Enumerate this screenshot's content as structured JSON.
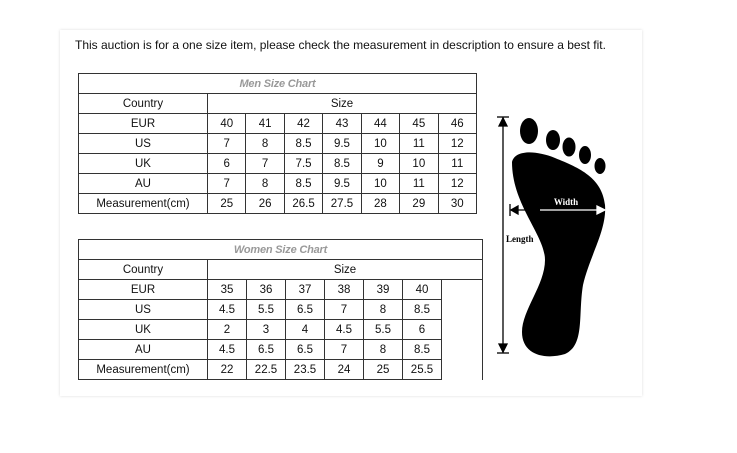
{
  "notice": "This auction is for a one size item, please check the measurement in description to ensure a best fit.",
  "men": {
    "title": "Men Size Chart",
    "country_header": "Country",
    "size_header": "Size",
    "rows": [
      {
        "label": "EUR",
        "values": [
          "40",
          "41",
          "42",
          "43",
          "44",
          "45",
          "46"
        ]
      },
      {
        "label": "US",
        "values": [
          "7",
          "8",
          "8.5",
          "9.5",
          "10",
          "11",
          "12"
        ]
      },
      {
        "label": "UK",
        "values": [
          "6",
          "7",
          "7.5",
          "8.5",
          "9",
          "10",
          "11"
        ]
      },
      {
        "label": "AU",
        "values": [
          "7",
          "8",
          "8.5",
          "9.5",
          "10",
          "11",
          "12"
        ]
      },
      {
        "label": "Measurement(cm)",
        "values": [
          "25",
          "26",
          "26.5",
          "27.5",
          "28",
          "29",
          "30"
        ]
      }
    ]
  },
  "women": {
    "title": "Women Size Chart",
    "country_header": "Country",
    "size_header": "Size",
    "rows": [
      {
        "label": "EUR",
        "values": [
          "35",
          "36",
          "37",
          "38",
          "39",
          "40"
        ]
      },
      {
        "label": "US",
        "values": [
          "4.5",
          "5.5",
          "6.5",
          "7",
          "8",
          "8.5"
        ]
      },
      {
        "label": "UK",
        "values": [
          "2",
          "3",
          "4",
          "4.5",
          "5.5",
          "6"
        ]
      },
      {
        "label": "AU",
        "values": [
          "4.5",
          "6.5",
          "6.5",
          "7",
          "8",
          "8.5"
        ]
      },
      {
        "label": "Measurement(cm)",
        "values": [
          "22",
          "22.5",
          "23.5",
          "24",
          "25",
          "25.5"
        ]
      }
    ]
  },
  "diagram": {
    "icon": "foot-measurement-icon",
    "width_label": "Width",
    "length_label": "Length"
  }
}
